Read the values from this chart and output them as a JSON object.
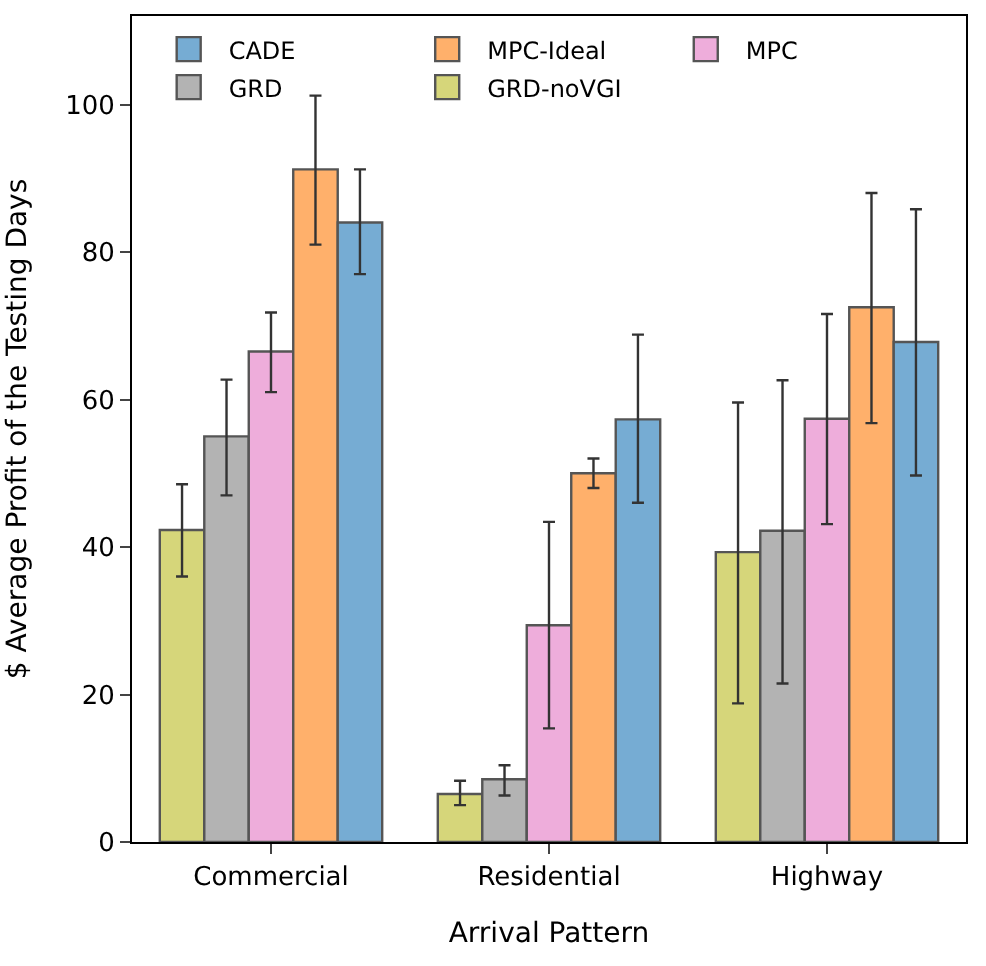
{
  "chart_data": {
    "type": "bar",
    "xlabel": "Arrival Pattern",
    "ylabel": "$ Average Profit of the Testing Days",
    "categories": [
      "Commercial",
      "Residential",
      "Highway"
    ],
    "series": [
      {
        "name": "GRD-noVGI",
        "color": "#d6d67a",
        "values": [
          42.3,
          6.5,
          39.3
        ],
        "errors": [
          [
            36,
            48.5
          ],
          [
            5,
            8.3
          ],
          [
            18.8,
            59.6
          ]
        ]
      },
      {
        "name": "GRD",
        "color": "#b3b3b3",
        "values": [
          55,
          8.5,
          42.2
        ],
        "errors": [
          [
            47,
            62.7
          ],
          [
            6.3,
            10.4
          ],
          [
            21.5,
            62.6
          ]
        ]
      },
      {
        "name": "MPC",
        "color": "#eeaddb",
        "values": [
          66.5,
          29.4,
          57.4
        ],
        "errors": [
          [
            61,
            71.8
          ],
          [
            15.4,
            43.4
          ],
          [
            43.1,
            71.6
          ]
        ]
      },
      {
        "name": "MPC-Ideal",
        "color": "#ffb06b",
        "values": [
          91.2,
          50,
          72.5
        ],
        "errors": [
          [
            81,
            101.2
          ],
          [
            48,
            52
          ],
          [
            56.8,
            88
          ]
        ]
      },
      {
        "name": "CADE",
        "color": "#76acd3",
        "values": [
          84,
          57.3,
          67.8
        ],
        "errors": [
          [
            77,
            91.2
          ],
          [
            46,
            68.8
          ],
          [
            49.7,
            85.8
          ]
        ]
      }
    ],
    "ylim": [
      0,
      112
    ],
    "yticks": [
      0,
      20,
      40,
      60,
      80,
      100
    ],
    "legend": "top"
  }
}
